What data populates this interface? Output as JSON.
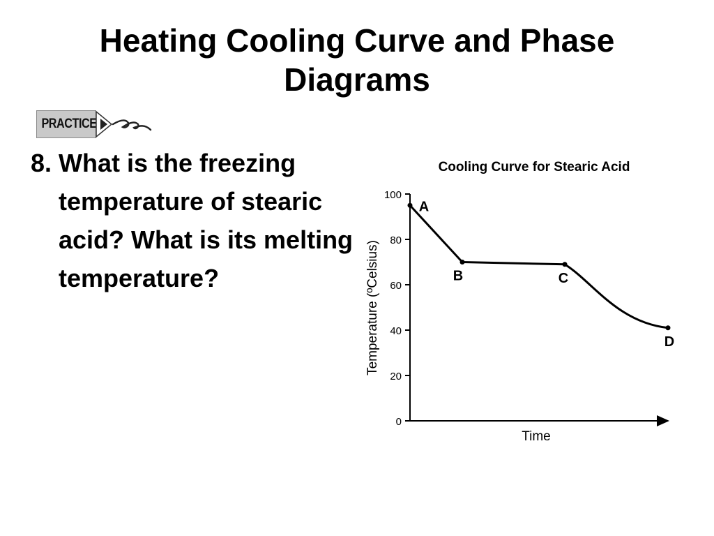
{
  "slide": {
    "title_line1": "Heating Cooling Curve and Phase",
    "title_line2": "Diagrams",
    "practice_label": "PRACTICE",
    "question": "8. What is the freezing temperature of stearic acid? What is its melting temperature?"
  },
  "chart_data": {
    "type": "line",
    "title": "Cooling Curve for Stearic Acid",
    "xlabel": "Time",
    "ylabel": "Temperature (ºCelsius)",
    "ylim": [
      0,
      100
    ],
    "yticks": [
      0,
      20,
      40,
      60,
      80,
      100
    ],
    "x_ticks_shown": false,
    "grid": false,
    "series": [
      {
        "points": [
          {
            "label": "A",
            "y": 95
          },
          {
            "label": "B",
            "y": 70
          },
          {
            "label": "C",
            "y": 69
          },
          {
            "label": "D",
            "y": 41
          }
        ]
      }
    ],
    "colors": {
      "line": "#000000",
      "axis": "#000000"
    }
  }
}
